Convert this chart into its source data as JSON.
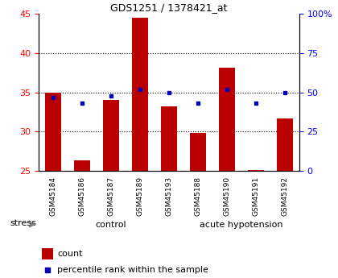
{
  "title": "GDS1251 / 1378421_at",
  "samples": [
    "GSM45184",
    "GSM45186",
    "GSM45187",
    "GSM45189",
    "GSM45193",
    "GSM45188",
    "GSM45190",
    "GSM45191",
    "GSM45192"
  ],
  "counts": [
    35.0,
    26.4,
    34.0,
    44.5,
    33.2,
    29.8,
    38.2,
    25.1,
    31.7
  ],
  "percentile_ranks_pct": [
    47,
    43,
    48,
    52,
    50,
    43,
    52,
    43,
    50
  ],
  "ylim_left": [
    25,
    45
  ],
  "ylim_right": [
    0,
    100
  ],
  "yticks_left": [
    25,
    30,
    35,
    40,
    45
  ],
  "ytick_labels_left": [
    "25",
    "30",
    "35",
    "40",
    "45"
  ],
  "yticks_right": [
    0,
    25,
    50,
    75,
    100
  ],
  "ytick_labels_right": [
    "0",
    "25",
    "50",
    "75",
    "100%"
  ],
  "bar_color": "#bb0000",
  "dot_color": "#0000bb",
  "bar_baseline": 25,
  "n_control": 5,
  "n_acute": 4,
  "control_label": "control",
  "acute_label": "acute hypotension",
  "stress_label": "stress",
  "control_color": "#d4f7d4",
  "acute_color": "#66dd66",
  "tick_bg_color": "#c8c8c8",
  "legend_count_label": "count",
  "legend_pct_label": "percentile rank within the sample",
  "grid_yticks": [
    30,
    35,
    40
  ]
}
